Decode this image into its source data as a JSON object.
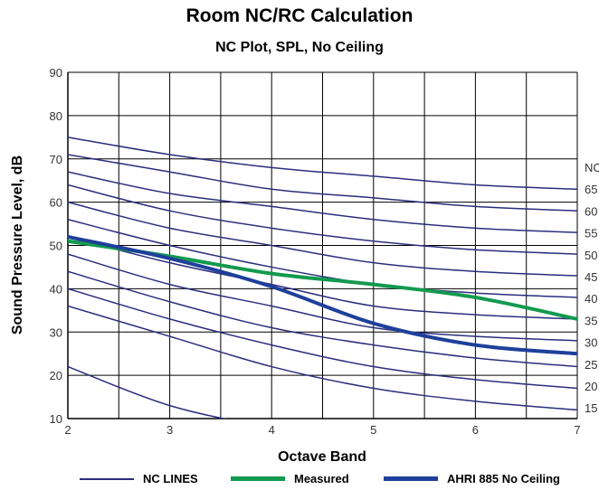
{
  "colors": {
    "nc": "#2b2d7d",
    "measured": "#129a4e",
    "ahri": "#1f3f9b",
    "grid": "#000000"
  },
  "chart_data": {
    "type": "line",
    "title": "Room NC/RC Calculation",
    "subtitle": "NC Plot, SPL, No Ceiling",
    "xlabel": "Octave Band",
    "ylabel": "Sound Pressure Level, dB",
    "xlim": [
      2,
      7
    ],
    "ylim": [
      10,
      90
    ],
    "x_ticks": [
      2,
      3,
      4,
      5,
      6,
      7
    ],
    "y_ticks": [
      10,
      20,
      30,
      40,
      50,
      60,
      70,
      80,
      90
    ],
    "x_gridlines": [
      2,
      2.5,
      3,
      3.5,
      4,
      4.5,
      5,
      5.5,
      6,
      6.5,
      7
    ],
    "grid": true,
    "nc_axis_labels": [
      "NC",
      "65",
      "60",
      "55",
      "50",
      "45",
      "40",
      "35",
      "30",
      "25",
      "20",
      "15"
    ],
    "nc_lines": {
      "name": "NC LINES",
      "x": [
        2,
        3,
        4,
        5,
        6,
        7
      ],
      "curves": [
        [
          75,
          71,
          68,
          66,
          64,
          63
        ],
        [
          71,
          67,
          63,
          61,
          59,
          58
        ],
        [
          67,
          62,
          59,
          56,
          54,
          53
        ],
        [
          64,
          58,
          54,
          51,
          49,
          48
        ],
        [
          60,
          54,
          50,
          46,
          44,
          43
        ],
        [
          56,
          50,
          45,
          41,
          39,
          38
        ],
        [
          52,
          46,
          41,
          36,
          34,
          33
        ],
        [
          48,
          41,
          36,
          31,
          29,
          28
        ],
        [
          44,
          37,
          31,
          27,
          24,
          22
        ],
        [
          40,
          33,
          27,
          22,
          19,
          17
        ],
        [
          36,
          29,
          22,
          17,
          14,
          12
        ],
        [
          22,
          13,
          8,
          5,
          3,
          2
        ]
      ]
    },
    "series": [
      {
        "name": "Measured",
        "x": [
          2,
          3,
          4,
          5,
          6,
          7
        ],
        "values": [
          51,
          47.5,
          43.5,
          41,
          38,
          33
        ]
      },
      {
        "name": "AHRI 885 No Ceiling",
        "x": [
          2,
          3,
          4,
          5,
          6,
          7
        ],
        "values": [
          52,
          47,
          40.5,
          32,
          27,
          25
        ]
      }
    ],
    "legend": [
      "NC LINES",
      "Measured",
      "AHRI 885 No Ceiling"
    ],
    "legend_position": "bottom"
  }
}
